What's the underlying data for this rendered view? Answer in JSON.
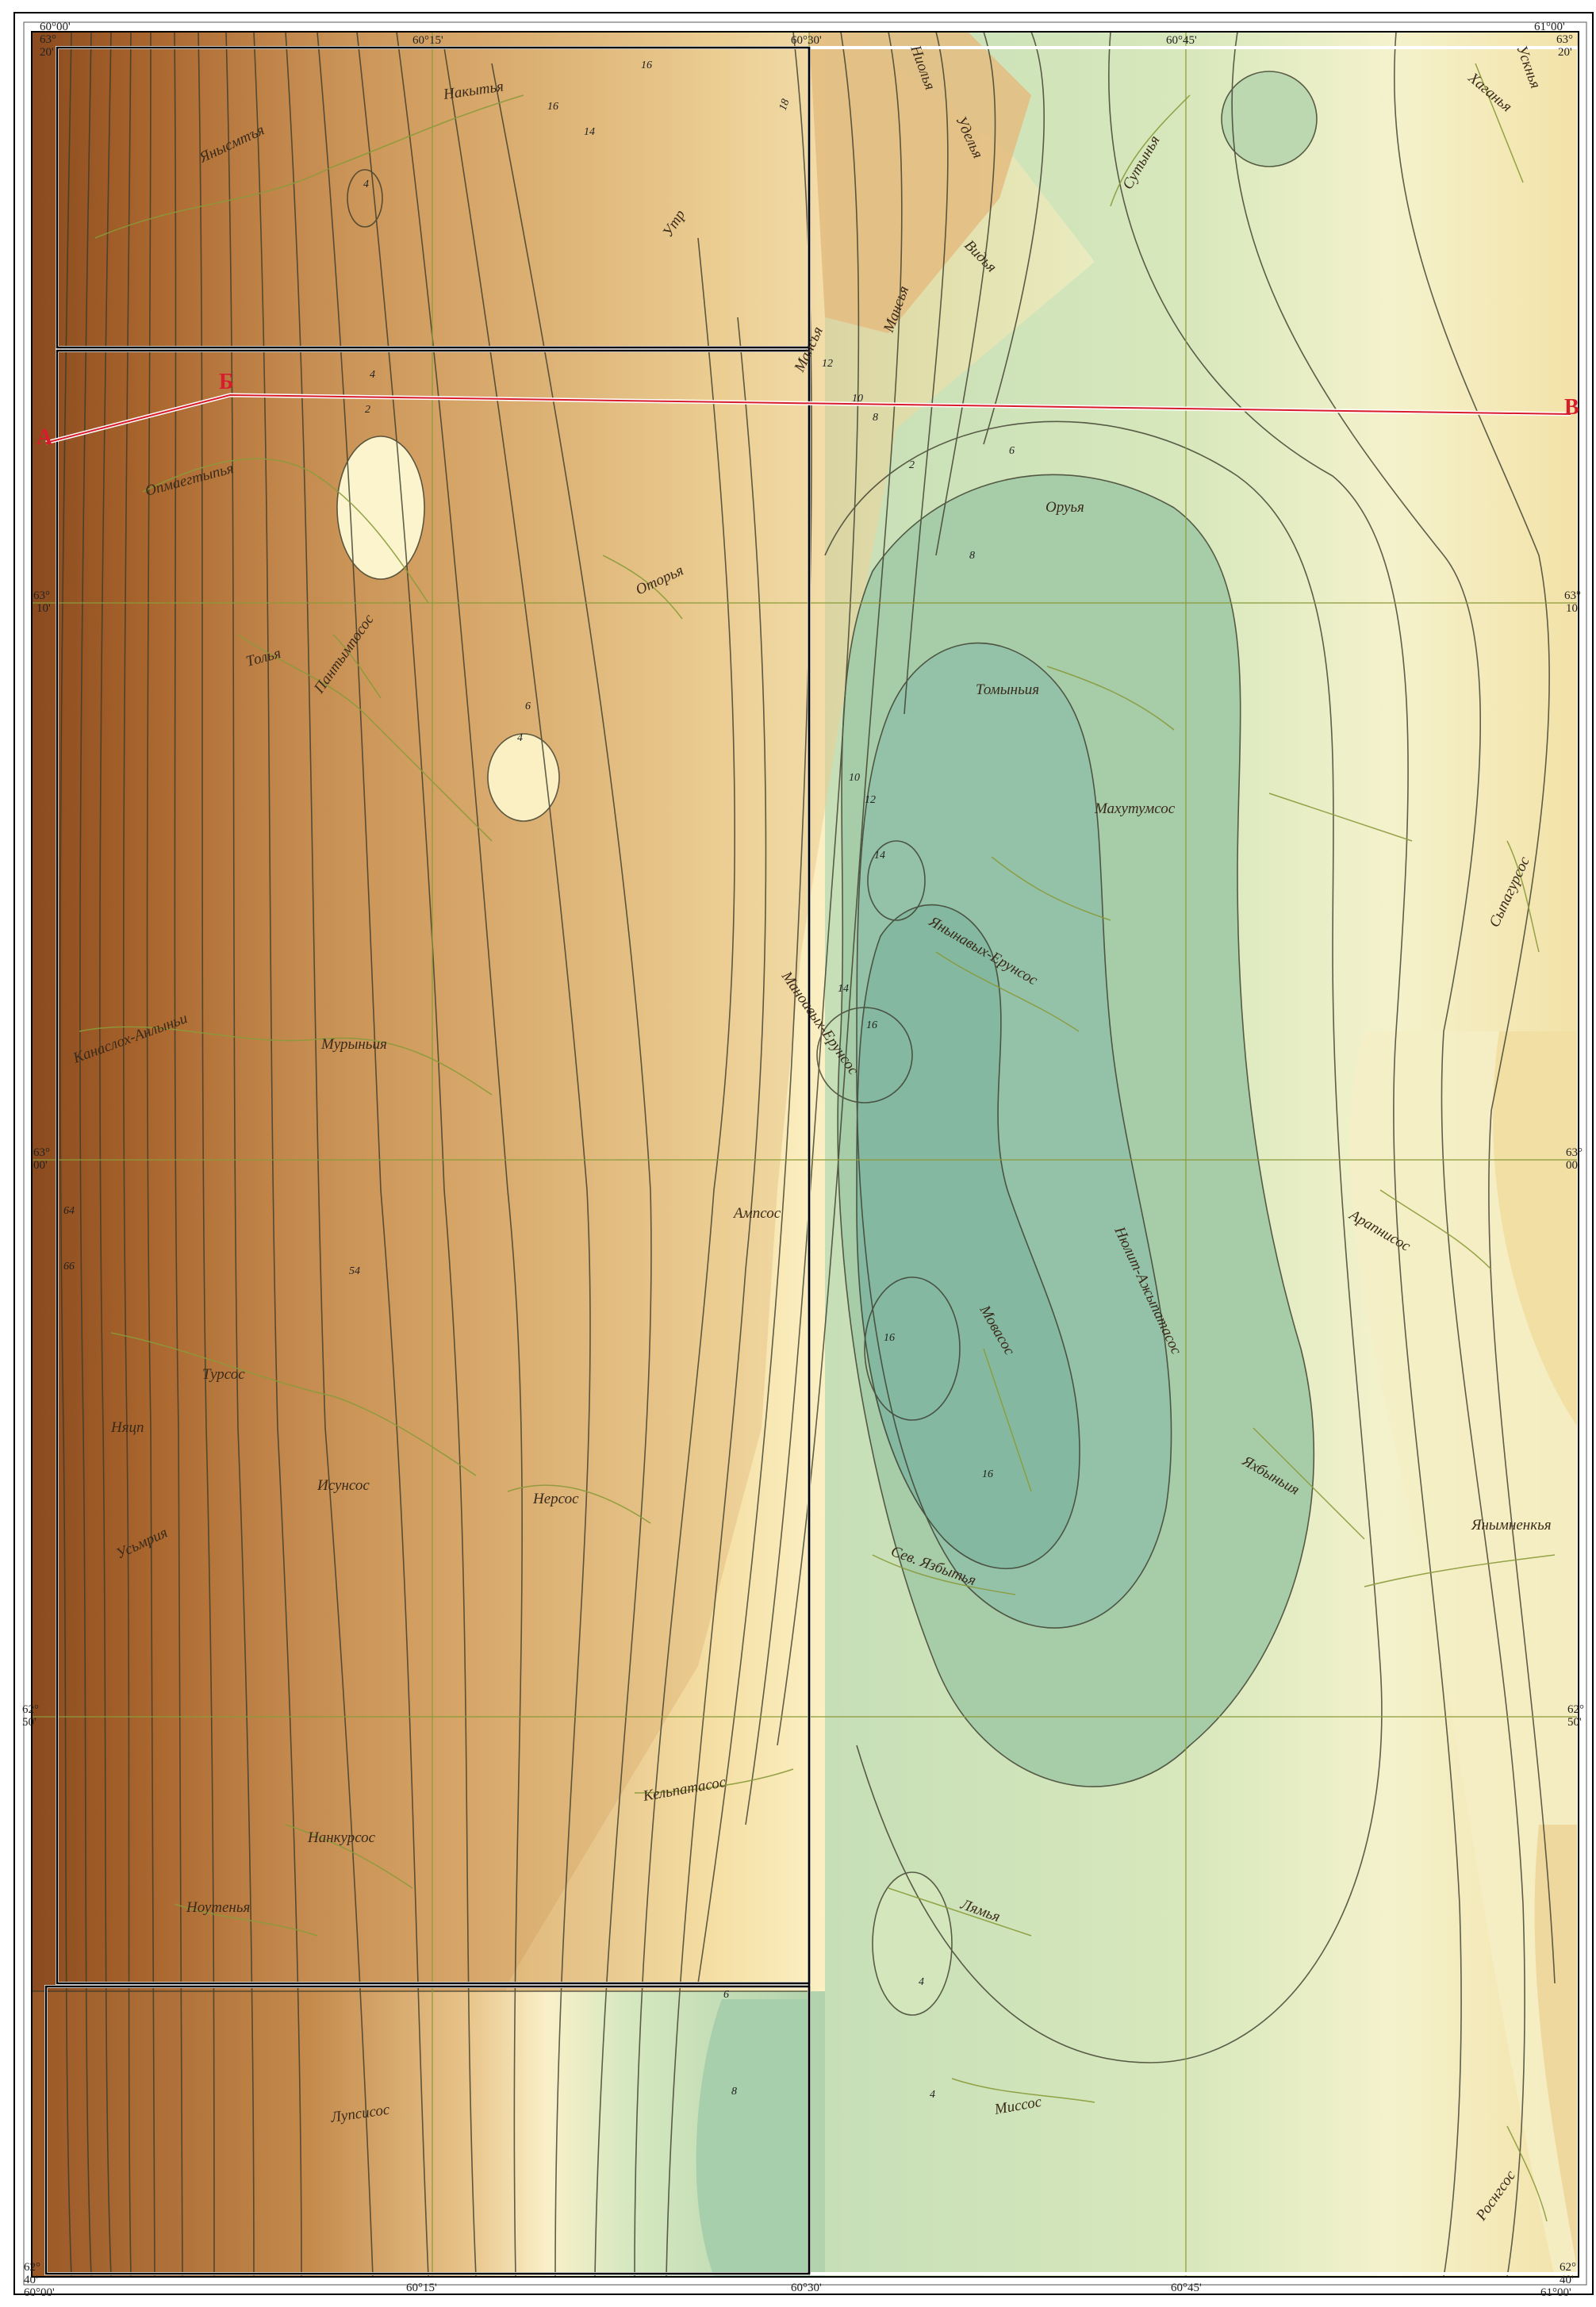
{
  "map": {
    "coords": {
      "top": [
        "60°15'",
        "60°30'",
        "60°45'"
      ],
      "bottom": [
        "60°15'",
        "60°30'",
        "60°45'"
      ],
      "corner_tl": [
        "60°00'",
        "63°",
        "20'"
      ],
      "corner_tr": [
        "61°00'",
        "63°",
        "20'"
      ],
      "corner_bl": [
        "62°",
        "40'",
        "60°00'"
      ],
      "corner_br": [
        "62°",
        "40'",
        "61°00'"
      ],
      "left": [
        [
          "63°",
          "10'"
        ],
        [
          "63°",
          "00'"
        ],
        [
          "62°",
          "50'"
        ]
      ],
      "right": [
        [
          "63°",
          "10'"
        ],
        [
          "63°",
          "00'"
        ],
        [
          "62°",
          "50'"
        ]
      ]
    },
    "profile": {
      "points": [
        "А",
        "Б",
        "В"
      ],
      "color": "#d81c2c"
    },
    "rivers": [
      "Янысмтъя",
      "Накытья",
      "Утр",
      "Ниолья",
      "Хаганья",
      "Ускнья",
      "Сутынья",
      "Уделья",
      "Видья",
      "Мансья",
      "Мансья",
      "Опмаегтыпья",
      "Оторья",
      "Оруья",
      "Толья",
      "Пантымпосос",
      "Томыньия",
      "Махутумсос",
      "Сыпагурсос",
      "Янынавых-Ерунсос",
      "Маноавых-Ерунсос",
      "Мурыньия",
      "Канаслох-Анлыньи",
      "Ампсос",
      "Арапнисос",
      "Нюлит-Ажыпатасос",
      "Мовасос",
      "Яхбыньия",
      "Турсос",
      "Няцп",
      "Исунсос",
      "Нерсос",
      "Сев. Язбытья",
      "Янымненкья",
      "Кельпатасос",
      "Нанкурсос",
      "Ноутенья",
      "Лямья",
      "Миссос",
      "Лупсисос",
      "Усьмрия",
      "Роснгсос"
    ],
    "contour_labels": [
      "16",
      "18",
      "16",
      "14",
      "4",
      "4",
      "2",
      "12",
      "10",
      "8",
      "2",
      "6",
      "8",
      "6",
      "4",
      "10",
      "12",
      "14",
      "14",
      "16",
      "64",
      "66",
      "54",
      "16",
      "16",
      "4",
      "4",
      "6",
      "8"
    ],
    "colors": {
      "dark_brown": "#8a4a1e",
      "brown": "#c78e52",
      "tan": "#e6c48a",
      "cream": "#faf0c0",
      "light_green": "#d6e6bc",
      "green": "#b3d4aa",
      "teal": "#8cbea6",
      "river": "#8a9a3a",
      "contour": "#3a3a2a",
      "profile": "#d81c2c"
    }
  }
}
